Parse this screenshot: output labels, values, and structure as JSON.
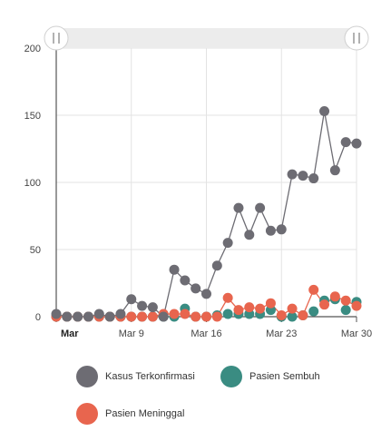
{
  "chart_data": {
    "type": "line",
    "title": "",
    "xlabel": "",
    "ylabel": "",
    "ylim": [
      0,
      200
    ],
    "y_ticks": [
      "0",
      "50",
      "100",
      "150",
      "200"
    ],
    "x_tick_labels": [
      "Mar",
      "Mar 9",
      "Mar 16",
      "Mar 23",
      "Mar 30"
    ],
    "x_tick_dates": [
      "2020-03-02",
      "2020-03-09",
      "2020-03-16",
      "2020-03-23",
      "2020-03-30"
    ],
    "x": [
      "2020-03-02",
      "2020-03-03",
      "2020-03-04",
      "2020-03-05",
      "2020-03-06",
      "2020-03-07",
      "2020-03-08",
      "2020-03-09",
      "2020-03-10",
      "2020-03-11",
      "2020-03-12",
      "2020-03-13",
      "2020-03-14",
      "2020-03-15",
      "2020-03-16",
      "2020-03-17",
      "2020-03-18",
      "2020-03-19",
      "2020-03-20",
      "2020-03-21",
      "2020-03-22",
      "2020-03-23",
      "2020-03-24",
      "2020-03-25",
      "2020-03-26",
      "2020-03-27",
      "2020-03-28",
      "2020-03-29",
      "2020-03-30"
    ],
    "series": [
      {
        "name": "Kasus Terkonfirmasi",
        "color": "#6d6c73",
        "line": true,
        "values": [
          2,
          0,
          0,
          0,
          2,
          0,
          2,
          13,
          8,
          7,
          0,
          35,
          27,
          21,
          17,
          38,
          55,
          81,
          61,
          81,
          64,
          65,
          106,
          105,
          103,
          153,
          109,
          130,
          129
        ]
      },
      {
        "name": "Pasien Sembuh",
        "color": "#3a8c82",
        "line": false,
        "values": [
          0,
          0,
          0,
          0,
          0,
          0,
          0,
          0,
          0,
          0,
          0,
          0,
          6,
          0,
          0,
          1,
          2,
          2,
          2,
          2,
          5,
          0,
          0,
          1,
          4,
          12,
          13,
          5,
          11
        ]
      },
      {
        "name": "Pasien Meninggal",
        "color": "#e8654e",
        "line": true,
        "values": [
          0,
          0,
          0,
          0,
          0,
          0,
          0,
          0,
          0,
          0,
          2,
          2,
          2,
          0,
          0,
          0,
          14,
          5,
          7,
          6,
          10,
          1,
          6,
          1,
          20,
          9,
          15,
          12,
          8
        ]
      }
    ],
    "grid": true,
    "legend_position": "bottom"
  }
}
